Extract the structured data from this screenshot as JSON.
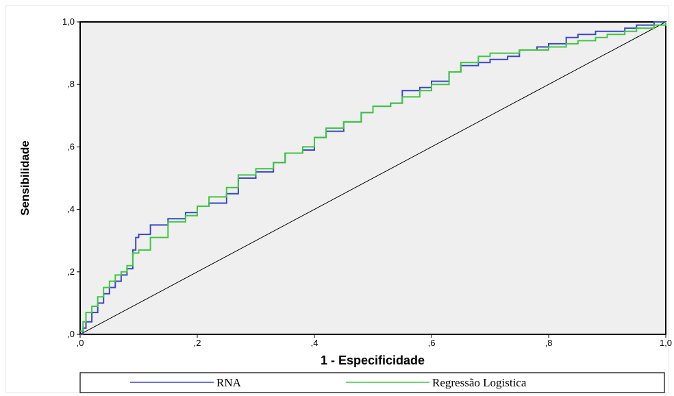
{
  "chart_data": {
    "type": "line",
    "xlabel": "1 - Especificidade",
    "ylabel": "Sensibilidade",
    "xlim": [
      0,
      1
    ],
    "ylim": [
      0,
      1
    ],
    "x_ticks": [
      ",0",
      ",2",
      ",4",
      ",6",
      ",8",
      "1,0"
    ],
    "y_ticks": [
      ",0",
      ",2",
      ",4",
      ",6",
      ",8",
      "1,0"
    ],
    "grid": false,
    "legend_position": "bottom",
    "plot_background": "#efefef",
    "reference_line": {
      "x": [
        0,
        1
      ],
      "y": [
        0,
        1
      ],
      "color": "#000000"
    },
    "series": [
      {
        "name": "RNA",
        "color": "#3c46c8",
        "x": [
          0.0,
          0.005,
          0.01,
          0.02,
          0.03,
          0.04,
          0.05,
          0.06,
          0.07,
          0.08,
          0.09,
          0.095,
          0.1,
          0.12,
          0.15,
          0.18,
          0.2,
          0.22,
          0.25,
          0.27,
          0.3,
          0.33,
          0.35,
          0.38,
          0.4,
          0.42,
          0.45,
          0.48,
          0.5,
          0.53,
          0.55,
          0.58,
          0.6,
          0.63,
          0.65,
          0.68,
          0.7,
          0.73,
          0.75,
          0.78,
          0.8,
          0.83,
          0.85,
          0.88,
          0.9,
          0.93,
          0.95,
          0.98,
          1.0
        ],
        "y": [
          0.0,
          0.02,
          0.04,
          0.07,
          0.1,
          0.13,
          0.15,
          0.17,
          0.19,
          0.21,
          0.27,
          0.31,
          0.32,
          0.35,
          0.37,
          0.39,
          0.41,
          0.42,
          0.45,
          0.5,
          0.52,
          0.55,
          0.58,
          0.59,
          0.63,
          0.65,
          0.68,
          0.71,
          0.73,
          0.74,
          0.78,
          0.79,
          0.81,
          0.84,
          0.86,
          0.87,
          0.88,
          0.89,
          0.91,
          0.92,
          0.93,
          0.95,
          0.96,
          0.97,
          0.97,
          0.98,
          0.99,
          1.0,
          1.0
        ]
      },
      {
        "name": "Regressão Logistica",
        "color": "#3cc83c",
        "x": [
          0.0,
          0.005,
          0.01,
          0.02,
          0.03,
          0.04,
          0.05,
          0.06,
          0.07,
          0.08,
          0.09,
          0.1,
          0.12,
          0.15,
          0.18,
          0.2,
          0.22,
          0.25,
          0.27,
          0.3,
          0.33,
          0.35,
          0.38,
          0.4,
          0.42,
          0.45,
          0.48,
          0.5,
          0.53,
          0.55,
          0.58,
          0.6,
          0.63,
          0.65,
          0.68,
          0.7,
          0.73,
          0.75,
          0.78,
          0.8,
          0.83,
          0.85,
          0.88,
          0.9,
          0.93,
          0.95,
          0.98,
          1.0
        ],
        "y": [
          0.01,
          0.04,
          0.07,
          0.09,
          0.12,
          0.15,
          0.17,
          0.19,
          0.2,
          0.22,
          0.26,
          0.27,
          0.31,
          0.36,
          0.38,
          0.41,
          0.44,
          0.47,
          0.51,
          0.53,
          0.55,
          0.58,
          0.6,
          0.63,
          0.66,
          0.68,
          0.71,
          0.73,
          0.74,
          0.76,
          0.78,
          0.8,
          0.84,
          0.87,
          0.89,
          0.9,
          0.9,
          0.91,
          0.91,
          0.92,
          0.93,
          0.94,
          0.95,
          0.96,
          0.97,
          0.98,
          0.99,
          1.0
        ]
      }
    ]
  }
}
